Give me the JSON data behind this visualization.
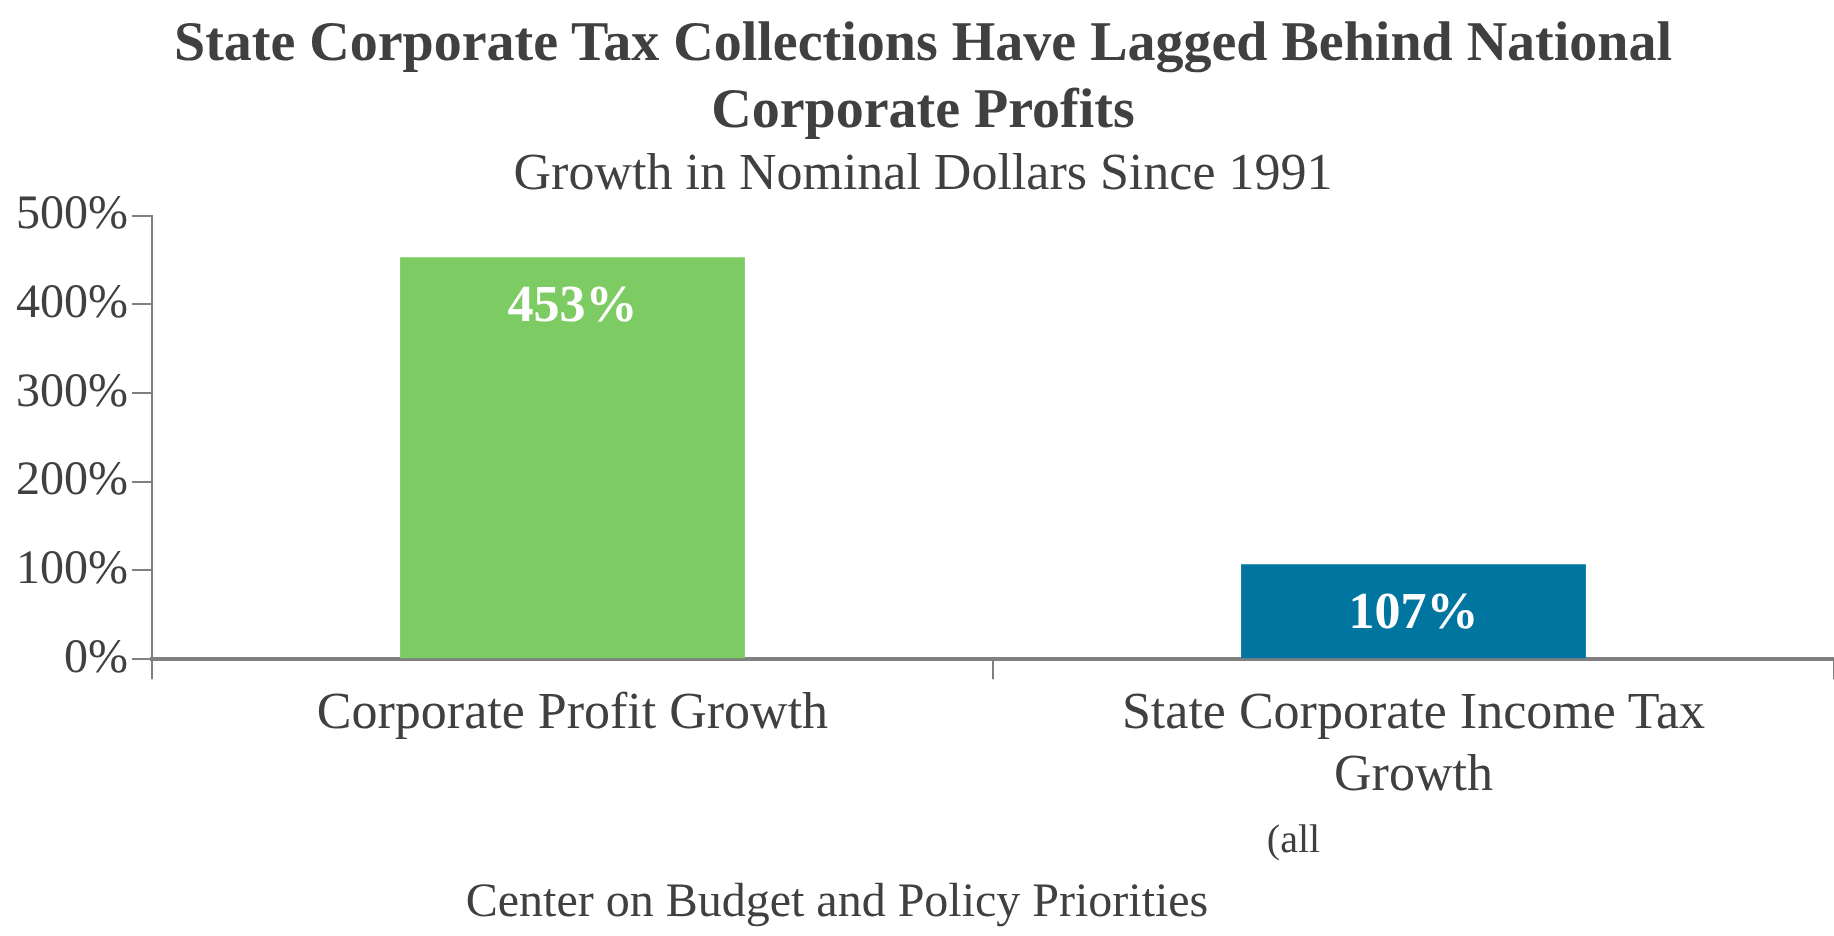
{
  "chart_data": {
    "type": "bar",
    "title": "State Corporate Tax Collections Have Lagged Behind National Corporate Profits",
    "subtitle": "Growth in Nominal Dollars Since 1991",
    "categories": [
      "Corporate Profit Growth",
      "State Corporate Income Tax Growth"
    ],
    "values": [
      453,
      107
    ],
    "colors": [
      "#7dcb63",
      "#00759f"
    ],
    "value_labels": [
      "453%",
      "107%"
    ],
    "ylim": [
      0,
      500
    ],
    "yticks": [
      {
        "value": 0,
        "label": "0%"
      },
      {
        "value": 100,
        "label": "100%"
      },
      {
        "value": 200,
        "label": "200%"
      },
      {
        "value": 300,
        "label": "300%"
      },
      {
        "value": 400,
        "label": "400%"
      },
      {
        "value": 500,
        "label": "500%"
      }
    ],
    "grid": false,
    "legend": false,
    "annotations": [
      "(all",
      "Center on Budget and Policy Priorities"
    ]
  }
}
